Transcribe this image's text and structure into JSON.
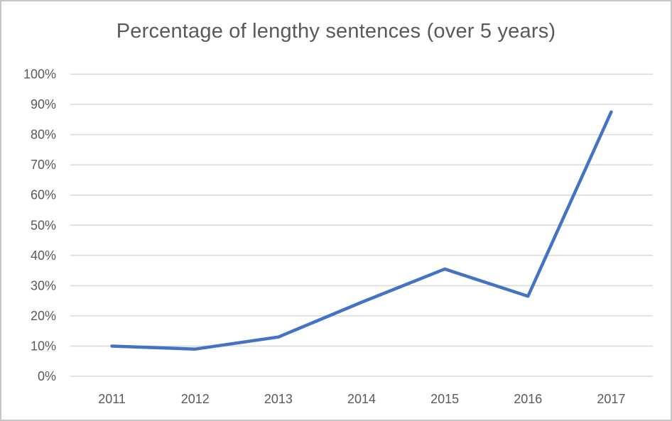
{
  "window": {
    "background_color": "#ffffff",
    "border_color": "#c6c6c6"
  },
  "chart_data": {
    "type": "line",
    "title": "Percentage of lengthy sentences (over 5 years)",
    "categories": [
      "2011",
      "2012",
      "2013",
      "2014",
      "2015",
      "2016",
      "2017"
    ],
    "series": [
      {
        "name": "Percentage of lengthy sentences",
        "values": [
          10,
          9,
          13,
          24.5,
          35.5,
          26.5,
          87.5
        ]
      }
    ],
    "xlabel": "",
    "ylabel": "",
    "ylim": [
      0,
      100
    ],
    "y_tick_step": 10,
    "y_tick_labels": [
      "0%",
      "10%",
      "20%",
      "30%",
      "40%",
      "50%",
      "60%",
      "70%",
      "80%",
      "90%",
      "100%"
    ],
    "grid": "horizontal",
    "legend": "none",
    "style": {
      "line_color": "#4472C4",
      "line_width": 4.5,
      "gridline_color": "#D9D9D9",
      "text_color": "#595959",
      "title_color": "#595959"
    }
  }
}
